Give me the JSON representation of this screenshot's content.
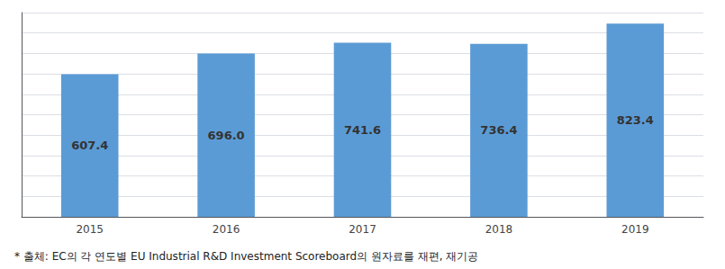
{
  "chart_data": {
    "type": "bar",
    "categories": [
      "2015",
      "2016",
      "2017",
      "2018",
      "2019"
    ],
    "values": [
      607.4,
      696.0,
      741.6,
      736.4,
      823.4
    ],
    "value_labels": [
      "607.4",
      "696.0",
      "741.6",
      "736.4",
      "823.4"
    ],
    "data_labels": true,
    "color": "#5B9BD5",
    "ylim": [
      0,
      870
    ],
    "yticks": [
      0,
      87,
      174,
      261,
      348,
      435,
      522,
      609,
      696,
      783,
      870
    ],
    "grid": true,
    "tick_labels": "x",
    "annotations": [
      "* 출체: EC의 각 연도별 EU Industrial R&D Investment Scoreboard의 원자료를 재편, 재기공"
    ]
  }
}
